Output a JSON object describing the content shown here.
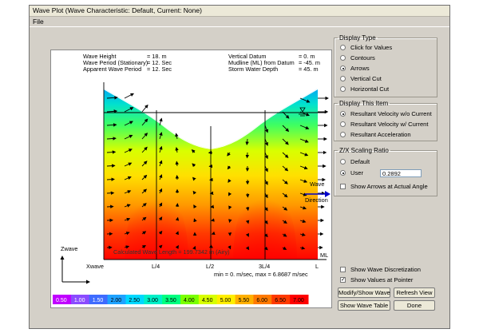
{
  "window": {
    "title": "Wave Plot  (Wave Characteristic: Default,  Current: None)",
    "menu": [
      "File"
    ]
  },
  "plot": {
    "info_left": [
      {
        "label": "Wave Height",
        "value": "= 18. m"
      },
      {
        "label": "Wave Period (Stationary)",
        "value": "= 12. Sec"
      },
      {
        "label": "Apparent Wave Period",
        "value": "= 12. Sec"
      }
    ],
    "info_right": [
      {
        "label": "Vertical Datum",
        "value": "= 0. m"
      },
      {
        "label": "Mudline (ML) from Datum",
        "value": "= -45. m"
      },
      {
        "label": "Storm Water Depth",
        "value": "= 45. m"
      }
    ],
    "wave_length_label": "Calculated Wave Length = 199.7342 m  (Airy)",
    "x_axis_labels": [
      "Xwave",
      "L/4",
      "L/2",
      "3L/4",
      "L"
    ],
    "z_label": "Zwave",
    "ml_label": "ML",
    "direction_label": [
      "Wave",
      "Direction"
    ],
    "minmax": "min = 0. m/sec,  max = 6.8687 m/sec",
    "colorbar_ticks": [
      "0.50",
      "1.00",
      "1.50",
      "2.00",
      "2.50",
      "3.00",
      "3.50",
      "4.00",
      "4.50",
      "5.00",
      "5.50",
      "6.00",
      "6.50",
      "7.00"
    ],
    "colorbar_colors": [
      "#c000ff",
      "#8a4bff",
      "#3e6bff",
      "#1fa2ff",
      "#00d8ff",
      "#00f0c8",
      "#00ff80",
      "#7aff00",
      "#d8ff00",
      "#ffee00",
      "#ffb000",
      "#ff7a00",
      "#ff3a00",
      "#ff0000"
    ]
  },
  "display_type": {
    "legend": "Display Type",
    "options": [
      "Click for Values",
      "Contours",
      "Arrows",
      "Vertical Cut",
      "Horizontal Cut"
    ],
    "selected": 2
  },
  "display_item": {
    "legend": "Display This Item",
    "options": [
      "Resultant Velocity w/o Current",
      "Resultant Velocity w/ Current",
      "Resultant Acceleration"
    ],
    "selected": 0
  },
  "scaling": {
    "legend": "Z/X Scaling Ratio",
    "options": [
      "Default",
      "User"
    ],
    "selected": 1,
    "user_value": "0.2892",
    "show_arrows_label": "Show Arrows at Actual Angle",
    "show_arrows_checked": false
  },
  "checks": {
    "show_discretization": "Show Wave Discretization",
    "show_discretization_checked": false,
    "show_values": "Show Values at Pointer",
    "show_values_checked": true
  },
  "buttons": {
    "modify": "Modify/Show Wave",
    "refresh": "Refresh View",
    "table": "Show Wave Table",
    "done": "Done"
  }
}
